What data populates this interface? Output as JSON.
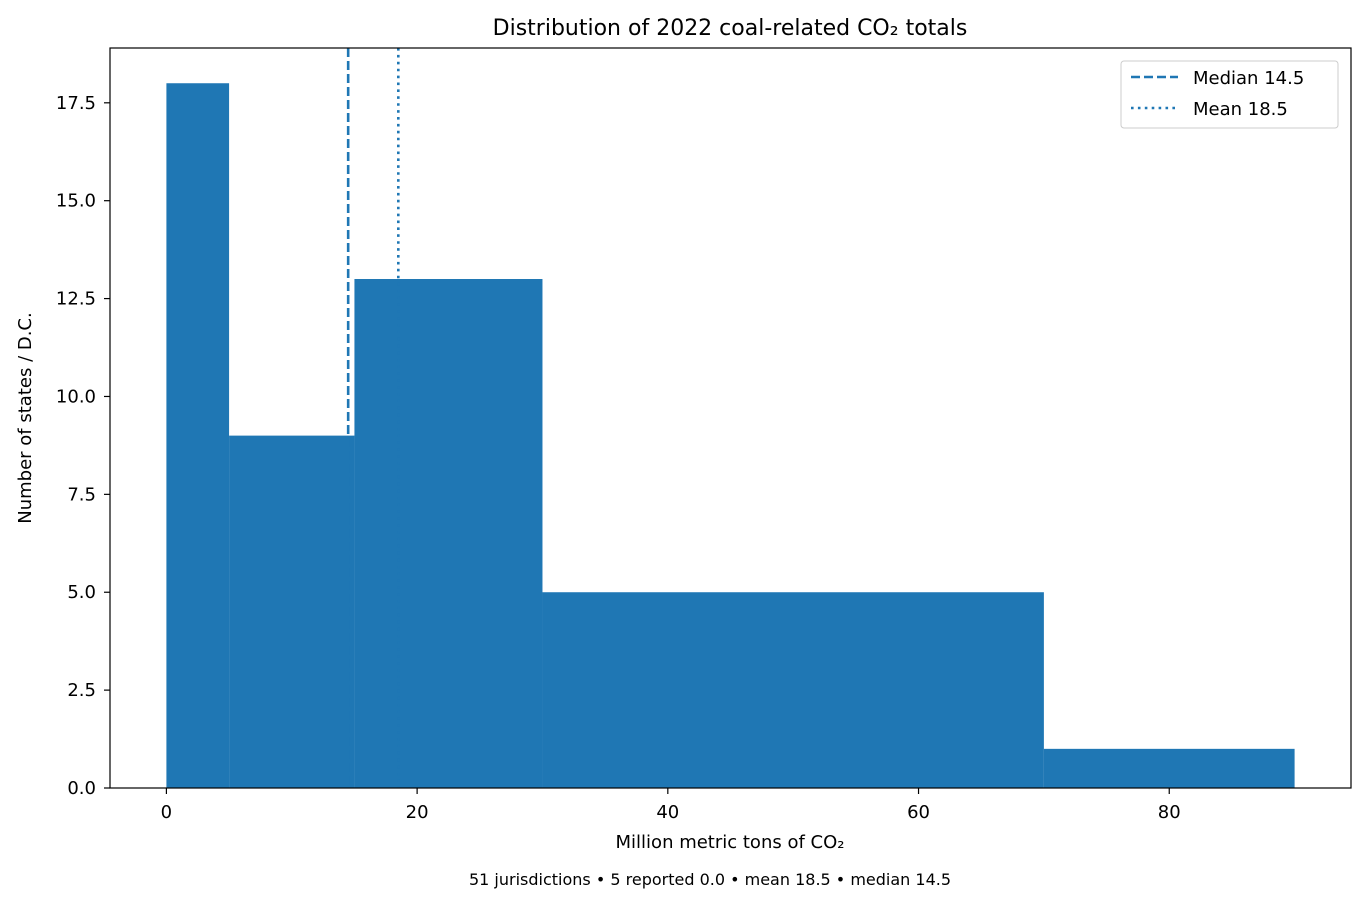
{
  "chart_data": {
    "type": "bar",
    "title": "Distribution of 2022 coal-related CO₂ totals",
    "xlabel": "Million metric tons of CO₂",
    "ylabel": "Number of states / D.C.",
    "bins": [
      {
        "x0": 0,
        "x1": 5,
        "count": 18
      },
      {
        "x0": 5,
        "x1": 15,
        "count": 9
      },
      {
        "x0": 15,
        "x1": 30,
        "count": 13
      },
      {
        "x0": 30,
        "x1": 70,
        "count": 5
      },
      {
        "x0": 70,
        "x1": 90,
        "count": 1
      }
    ],
    "xlim": [
      -4.5,
      94.5
    ],
    "ylim": [
      0,
      18.9
    ],
    "x_ticks": [
      0,
      20,
      40,
      60,
      80
    ],
    "x_tick_labels": [
      "0",
      "20",
      "40",
      "60",
      "80"
    ],
    "y_ticks": [
      0,
      2.5,
      5,
      7.5,
      10,
      12.5,
      15,
      17.5
    ],
    "y_tick_labels": [
      "0.0",
      "2.5",
      "5.0",
      "7.5",
      "10.0",
      "12.5",
      "15.0",
      "17.5"
    ],
    "reference_lines": [
      {
        "name": "Median 14.5",
        "value": 14.5,
        "style": "dashed"
      },
      {
        "name": "Mean 18.5",
        "value": 18.5,
        "style": "dotted"
      }
    ],
    "legend": {
      "position": "top-right",
      "entries": [
        "Median 14.5",
        "Mean 18.5"
      ]
    },
    "grid": false,
    "colors": {
      "bars": "#1f77b4",
      "lines": "#1f77b4"
    },
    "footnote": "51 jurisdictions • 5 reported 0.0 • mean 18.5 • median 14.5"
  }
}
